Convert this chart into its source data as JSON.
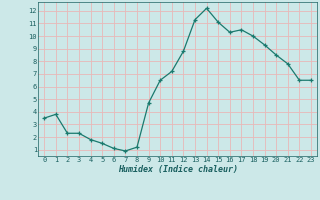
{
  "x": [
    0,
    1,
    2,
    3,
    4,
    5,
    6,
    7,
    8,
    9,
    10,
    11,
    12,
    13,
    14,
    15,
    16,
    17,
    18,
    19,
    20,
    21,
    22,
    23
  ],
  "y": [
    3.5,
    3.8,
    2.3,
    2.3,
    1.8,
    1.5,
    1.1,
    0.9,
    1.2,
    4.7,
    6.5,
    7.2,
    8.8,
    11.3,
    12.2,
    11.1,
    10.3,
    10.5,
    10.0,
    9.3,
    8.5,
    7.8,
    6.5,
    6.5
  ],
  "xlabel": "Humidex (Indice chaleur)",
  "ylim": [
    0.5,
    12.7
  ],
  "xlim": [
    -0.5,
    23.5
  ],
  "yticks": [
    1,
    2,
    3,
    4,
    5,
    6,
    7,
    8,
    9,
    10,
    11,
    12
  ],
  "xticks": [
    0,
    1,
    2,
    3,
    4,
    5,
    6,
    7,
    8,
    9,
    10,
    11,
    12,
    13,
    14,
    15,
    16,
    17,
    18,
    19,
    20,
    21,
    22,
    23
  ],
  "xtick_labels": [
    "0",
    "1",
    "2",
    "3",
    "4",
    "5",
    "6",
    "7",
    "8",
    "9",
    "10",
    "11",
    "12",
    "13",
    "14",
    "15",
    "16",
    "17",
    "18",
    "19",
    "20",
    "21",
    "22",
    "23"
  ],
  "line_color": "#1a7a6e",
  "marker": "+",
  "bg_color": "#cce8e8",
  "grid_color": "#e8b8b8",
  "tick_color": "#1a6060",
  "label_color": "#1a6060"
}
